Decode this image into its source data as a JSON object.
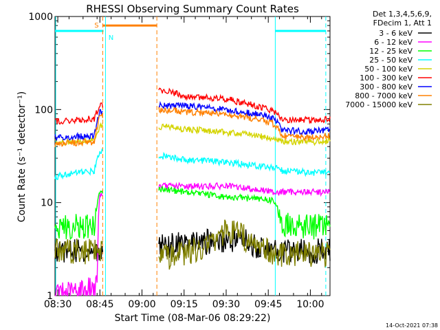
{
  "chart_data": {
    "type": "line",
    "title": "RHESSI Observing Summary Count Rates",
    "xlabel": "Start Time (08-Mar-06 08:29:22)",
    "ylabel": "Count Rate (s⁻¹ detector⁻¹)",
    "yscale": "log",
    "ylim": [
      1,
      1000
    ],
    "xlim": [
      "08:29",
      "10:07"
    ],
    "x_ticks": [
      "08:30",
      "08:45",
      "09:00",
      "09:15",
      "09:30",
      "09:45",
      "10:00"
    ],
    "y_ticks": [
      "1",
      "10",
      "100",
      "1000"
    ],
    "legend_position": "top-right",
    "legend_header": [
      "Det 1,3,4,5,6,9,",
      "FDecim 1, Att 1"
    ],
    "timestamp": "14-Oct-2021 07:38",
    "saa_label": "S",
    "night_label": "N",
    "series": [
      {
        "name": "3 - 6 keV",
        "color": "#000000",
        "x": [
          "08:29",
          "08:45",
          "09:06",
          "09:15",
          "09:30",
          "09:36",
          "09:40",
          "09:46",
          "09:50",
          "10:00",
          "10:06"
        ],
        "y": [
          3.0,
          3.0,
          3.5,
          3.5,
          4.0,
          4.0,
          3.5,
          3.0,
          3.0,
          3.0,
          3.0
        ]
      },
      {
        "name": "6 - 12 keV",
        "color": "#ff00ff",
        "x": [
          "08:29",
          "08:44",
          "08:45",
          "09:06",
          "09:15",
          "09:30",
          "09:40",
          "09:47",
          "09:50",
          "10:00",
          "10:06"
        ],
        "y": [
          1.0,
          1.2,
          12,
          15,
          15,
          15,
          14,
          13,
          13,
          13,
          13
        ]
      },
      {
        "name": "12 - 25 keV",
        "color": "#00ff00",
        "x": [
          "08:29",
          "08:43",
          "08:45",
          "09:06",
          "09:15",
          "09:30",
          "09:40",
          "09:47",
          "09:50",
          "10:00",
          "10:06"
        ],
        "y": [
          5.5,
          5.5,
          13,
          14,
          13,
          11.5,
          11,
          10.5,
          6,
          5.5,
          5.5
        ]
      },
      {
        "name": "25 - 50 keV",
        "color": "#00ffff",
        "x": [
          "08:29",
          "08:43",
          "08:45",
          "09:06",
          "09:15",
          "09:30",
          "09:40",
          "09:47",
          "09:50",
          "10:00",
          "10:06"
        ],
        "y": [
          19,
          22,
          35,
          32,
          29,
          27,
          25,
          24,
          22,
          21,
          21
        ]
      },
      {
        "name": "50 - 100 keV",
        "color": "#d4d400",
        "x": [
          "08:29",
          "08:43",
          "08:45",
          "09:06",
          "09:15",
          "09:30",
          "09:40",
          "09:47",
          "09:50",
          "10:00",
          "10:06"
        ],
        "y": [
          44,
          47,
          65,
          66,
          62,
          57,
          53,
          48,
          45,
          45,
          46
        ]
      },
      {
        "name": "100 - 300 keV",
        "color": "#ff0000",
        "x": [
          "08:29",
          "08:43",
          "08:45",
          "09:06",
          "09:15",
          "09:30",
          "09:40",
          "09:47",
          "09:50",
          "10:00",
          "10:06"
        ],
        "y": [
          74,
          80,
          110,
          165,
          140,
          130,
          110,
          97,
          78,
          77,
          78
        ]
      },
      {
        "name": "300 - 800 keV",
        "color": "#0000ff",
        "x": [
          "08:29",
          "08:43",
          "08:45",
          "09:06",
          "09:15",
          "09:30",
          "09:40",
          "09:47",
          "09:50",
          "10:00",
          "10:06"
        ],
        "y": [
          50,
          52,
          95,
          110,
          110,
          100,
          90,
          80,
          60,
          58,
          60
        ]
      },
      {
        "name": "800 - 7000 keV",
        "color": "#ff8000",
        "x": [
          "08:29",
          "08:43",
          "08:45",
          "09:06",
          "09:15",
          "09:30",
          "09:40",
          "09:47",
          "09:50",
          "10:00",
          "10:06"
        ],
        "y": [
          42,
          45,
          85,
          100,
          95,
          88,
          80,
          70,
          52,
          50,
          52
        ]
      },
      {
        "name": "7000 - 15000 keV",
        "color": "#808000",
        "x": [
          "08:29",
          "08:45",
          "09:06",
          "09:15",
          "09:25",
          "09:30",
          "09:35",
          "09:40",
          "09:47",
          "10:00",
          "10:06"
        ],
        "y": [
          3.0,
          3.0,
          2.5,
          2.8,
          3.5,
          5.0,
          4.5,
          3.5,
          2.8,
          2.8,
          2.8
        ]
      }
    ]
  }
}
